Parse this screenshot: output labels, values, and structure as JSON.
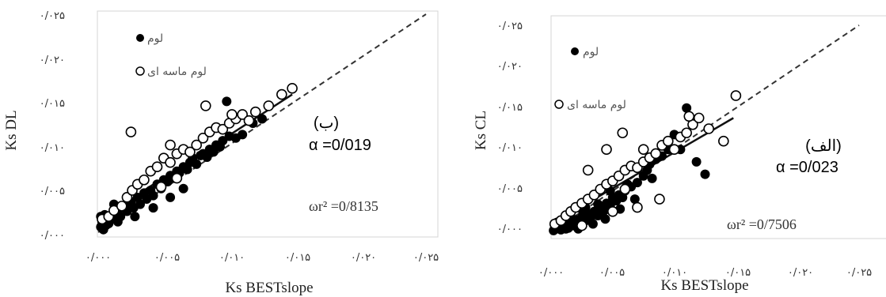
{
  "chart_data": [
    {
      "type": "scatter",
      "panel_label": "(ب)",
      "alpha_label": "α =0/019",
      "r2_label": "ωr² =0/8135",
      "xlabel": "Ks BESTslope",
      "ylabel": "Ks DL",
      "xlim": [
        0,
        0.025
      ],
      "ylim": [
        0,
        0.025
      ],
      "x_ticks": [
        "۰/۰۰۰",
        "۰/۰۰۵",
        "۰/۰۱۰",
        "۰/۰۱۵",
        "۰/۰۲۰",
        "۰/۰۲۵"
      ],
      "y_ticks": [
        "۰/۰۰۰",
        "۰/۰۰۵",
        "۰/۰۱۰",
        "۰/۰۱۵",
        "۰/۰۲۰",
        "۰/۰۲۵"
      ],
      "legend": [
        {
          "label": "لوم",
          "marker": "filled-circle"
        },
        {
          "label": "لوم ماسه ای",
          "marker": "open-circle"
        }
      ],
      "legend_position": "top-left",
      "grid": false,
      "reference_line": {
        "style": "dashed",
        "from": [
          0,
          0
        ],
        "to": [
          0.025,
          0.025
        ]
      },
      "trend_line": {
        "style": "solid",
        "from": [
          0.0035,
          0.0048
        ],
        "to": [
          0.0148,
          0.0158
        ]
      },
      "series": [
        {
          "name": "لوم",
          "marker": "filled",
          "points": [
            [
              0.0002,
              0.0006
            ],
            [
              0.0004,
              0.0003
            ],
            [
              0.0006,
              0.0008
            ],
            [
              0.0003,
              0.0012
            ],
            [
              0.0008,
              0.001
            ],
            [
              0.001,
              0.0016
            ],
            [
              0.0012,
              0.002
            ],
            [
              0.0015,
              0.0025
            ],
            [
              0.0017,
              0.0018
            ],
            [
              0.002,
              0.003
            ],
            [
              0.0022,
              0.0024
            ],
            [
              0.0025,
              0.0035
            ],
            [
              0.0027,
              0.0028
            ],
            [
              0.003,
              0.004
            ],
            [
              0.0032,
              0.0032
            ],
            [
              0.0035,
              0.0045
            ],
            [
              0.0037,
              0.0038
            ],
            [
              0.004,
              0.0048
            ],
            [
              0.0042,
              0.0042
            ],
            [
              0.0045,
              0.0055
            ],
            [
              0.0048,
              0.005
            ],
            [
              0.005,
              0.006
            ],
            [
              0.0053,
              0.0058
            ],
            [
              0.0055,
              0.0065
            ],
            [
              0.0058,
              0.0062
            ],
            [
              0.006,
              0.007
            ],
            [
              0.0062,
              0.0068
            ],
            [
              0.0065,
              0.0075
            ],
            [
              0.0068,
              0.0072
            ],
            [
              0.007,
              0.008
            ],
            [
              0.0072,
              0.0085
            ],
            [
              0.0075,
              0.0078
            ],
            [
              0.0078,
              0.0088
            ],
            [
              0.008,
              0.009
            ],
            [
              0.0083,
              0.0086
            ],
            [
              0.0085,
              0.0095
            ],
            [
              0.0088,
              0.0092
            ],
            [
              0.009,
              0.01
            ],
            [
              0.0093,
              0.0098
            ],
            [
              0.0095,
              0.0105
            ],
            [
              0.0098,
              0.015
            ],
            [
              0.01,
              0.011
            ],
            [
              0.0105,
              0.0108
            ],
            [
              0.011,
              0.0112
            ],
            [
              0.0118,
              0.0125
            ],
            [
              0.0125,
              0.013
            ],
            [
              0.0005,
              0.002
            ],
            [
              0.0015,
              0.0012
            ],
            [
              0.0028,
              0.0018
            ],
            [
              0.0042,
              0.0028
            ],
            [
              0.0055,
              0.004
            ],
            [
              0.0065,
              0.005
            ],
            [
              0.0002,
              0.0018
            ],
            [
              0.0012,
              0.0032
            ]
          ]
        },
        {
          "name": "لوم ماسه ای",
          "marker": "open",
          "points": [
            [
              0.0003,
              0.0015
            ],
            [
              0.0008,
              0.0018
            ],
            [
              0.0012,
              0.0025
            ],
            [
              0.0018,
              0.003
            ],
            [
              0.0022,
              0.004
            ],
            [
              0.0026,
              0.0048
            ],
            [
              0.003,
              0.0055
            ],
            [
              0.0035,
              0.006
            ],
            [
              0.004,
              0.007
            ],
            [
              0.0045,
              0.0075
            ],
            [
              0.005,
              0.0085
            ],
            [
              0.0055,
              0.008
            ],
            [
              0.006,
              0.009
            ],
            [
              0.0065,
              0.0095
            ],
            [
              0.007,
              0.0092
            ],
            [
              0.0075,
              0.01
            ],
            [
              0.008,
              0.0108
            ],
            [
              0.0085,
              0.0115
            ],
            [
              0.009,
              0.012
            ],
            [
              0.0095,
              0.0118
            ],
            [
              0.01,
              0.0125
            ],
            [
              0.0105,
              0.013
            ],
            [
              0.011,
              0.0135
            ],
            [
              0.0115,
              0.0128
            ],
            [
              0.012,
              0.0138
            ],
            [
              0.013,
              0.0145
            ],
            [
              0.014,
              0.0158
            ],
            [
              0.0148,
              0.0165
            ],
            [
              0.0025,
              0.0115
            ],
            [
              0.0055,
              0.01
            ],
            [
              0.0082,
              0.0145
            ],
            [
              0.0102,
              0.0135
            ],
            [
              0.0048,
              0.0052
            ],
            [
              0.006,
              0.0062
            ]
          ]
        }
      ]
    },
    {
      "type": "scatter",
      "panel_label": "(الف)",
      "alpha_label": "α =0/023",
      "r2_label": "ωr² =0/7506",
      "xlabel": "Ks BESTslope",
      "ylabel": "Ks CL",
      "xlim": [
        0,
        0.025
      ],
      "ylim": [
        0,
        0.025
      ],
      "x_ticks": [
        "۰/۰۰۰",
        "۰/۰۰۵",
        "۰/۰۱۰",
        "۰/۰۱۵",
        "۰/۰۲۰",
        "۰/۰۲۵"
      ],
      "y_ticks": [
        "۰/۰۰۰",
        "۰/۰۰۵",
        "۰/۰۱۰",
        "۰/۰۱۵",
        "۰/۰۲۰",
        "۰/۰۲۵"
      ],
      "legend": [
        {
          "label": "لوم",
          "marker": "filled-circle"
        },
        {
          "label": "لوم ماسه ای",
          "marker": "open-circle"
        }
      ],
      "legend_position": "top-left",
      "grid": false,
      "reference_line": {
        "style": "dashed",
        "from": [
          0,
          0
        ],
        "to": [
          0.025,
          0.025
        ]
      },
      "trend_line": {
        "style": "solid",
        "from": [
          0.0035,
          0.004
        ],
        "to": [
          0.0148,
          0.0138
        ]
      },
      "series": [
        {
          "name": "لوم",
          "marker": "filled",
          "points": [
            [
              0.0002,
              0.0002
            ],
            [
              0.0004,
              0.0004
            ],
            [
              0.0006,
              0.0006
            ],
            [
              0.0008,
              0.0003
            ],
            [
              0.001,
              0.0008
            ],
            [
              0.0012,
              0.001
            ],
            [
              0.0014,
              0.0005
            ],
            [
              0.0016,
              0.0012
            ],
            [
              0.0018,
              0.0008
            ],
            [
              0.002,
              0.0015
            ],
            [
              0.0022,
              0.0012
            ],
            [
              0.0025,
              0.0018
            ],
            [
              0.0028,
              0.0014
            ],
            [
              0.003,
              0.0022
            ],
            [
              0.0032,
              0.0018
            ],
            [
              0.0035,
              0.0025
            ],
            [
              0.0038,
              0.002
            ],
            [
              0.004,
              0.003
            ],
            [
              0.0043,
              0.0026
            ],
            [
              0.0045,
              0.0035
            ],
            [
              0.0048,
              0.0032
            ],
            [
              0.005,
              0.0042
            ],
            [
              0.0053,
              0.0038
            ],
            [
              0.0055,
              0.0045
            ],
            [
              0.0058,
              0.0042
            ],
            [
              0.006,
              0.005
            ],
            [
              0.0065,
              0.0055
            ],
            [
              0.007,
              0.006
            ],
            [
              0.0075,
              0.0068
            ],
            [
              0.0078,
              0.0075
            ],
            [
              0.008,
              0.0082
            ],
            [
              0.0085,
              0.0088
            ],
            [
              0.009,
              0.0092
            ],
            [
              0.0095,
              0.01
            ],
            [
              0.01,
              0.0118
            ],
            [
              0.011,
              0.015
            ],
            [
              0.0118,
              0.0085
            ],
            [
              0.0125,
              0.007
            ],
            [
              0.0005,
              0.0012
            ],
            [
              0.0015,
              0.002
            ],
            [
              0.0028,
              0.003
            ],
            [
              0.0048,
              0.005
            ],
            [
              0.0003,
              0.0008
            ],
            [
              0.0012,
              0.0004
            ],
            [
              0.0022,
              0.0004
            ],
            [
              0.0034,
              0.001
            ],
            [
              0.0044,
              0.0016
            ],
            [
              0.0056,
              0.0028
            ],
            [
              0.0068,
              0.004
            ],
            [
              0.0105,
              0.01
            ],
            [
              0.0082,
              0.0065
            ],
            [
              0.0062,
              0.0058
            ],
            [
              0.0038,
              0.0034
            ],
            [
              0.0026,
              0.0024
            ]
          ]
        },
        {
          "name": "لوم ماسه ای",
          "marker": "open",
          "points": [
            [
              0.0003,
              0.001
            ],
            [
              0.0008,
              0.0014
            ],
            [
              0.0012,
              0.002
            ],
            [
              0.0016,
              0.0025
            ],
            [
              0.002,
              0.003
            ],
            [
              0.0025,
              0.0035
            ],
            [
              0.003,
              0.004
            ],
            [
              0.0035,
              0.0045
            ],
            [
              0.004,
              0.0052
            ],
            [
              0.0045,
              0.0058
            ],
            [
              0.005,
              0.0062
            ],
            [
              0.0055,
              0.0068
            ],
            [
              0.006,
              0.0075
            ],
            [
              0.0065,
              0.008
            ],
            [
              0.007,
              0.0078
            ],
            [
              0.0075,
              0.0085
            ],
            [
              0.008,
              0.009
            ],
            [
              0.0085,
              0.0095
            ],
            [
              0.009,
              0.0105
            ],
            [
              0.0095,
              0.011
            ],
            [
              0.01,
              0.01
            ],
            [
              0.0105,
              0.0115
            ],
            [
              0.011,
              0.012
            ],
            [
              0.0115,
              0.013
            ],
            [
              0.012,
              0.0138
            ],
            [
              0.0128,
              0.0125
            ],
            [
              0.014,
              0.011
            ],
            [
              0.015,
              0.0165
            ],
            [
              0.003,
              0.0075
            ],
            [
              0.0045,
              0.01
            ],
            [
              0.0058,
              0.012
            ],
            [
              0.0075,
              0.01
            ],
            [
              0.0112,
              0.014
            ],
            [
              0.0088,
              0.004
            ],
            [
              0.006,
              0.0052
            ],
            [
              0.007,
              0.003
            ],
            [
              0.005,
              0.0025
            ],
            [
              0.0025,
              0.0008
            ]
          ]
        }
      ]
    }
  ]
}
